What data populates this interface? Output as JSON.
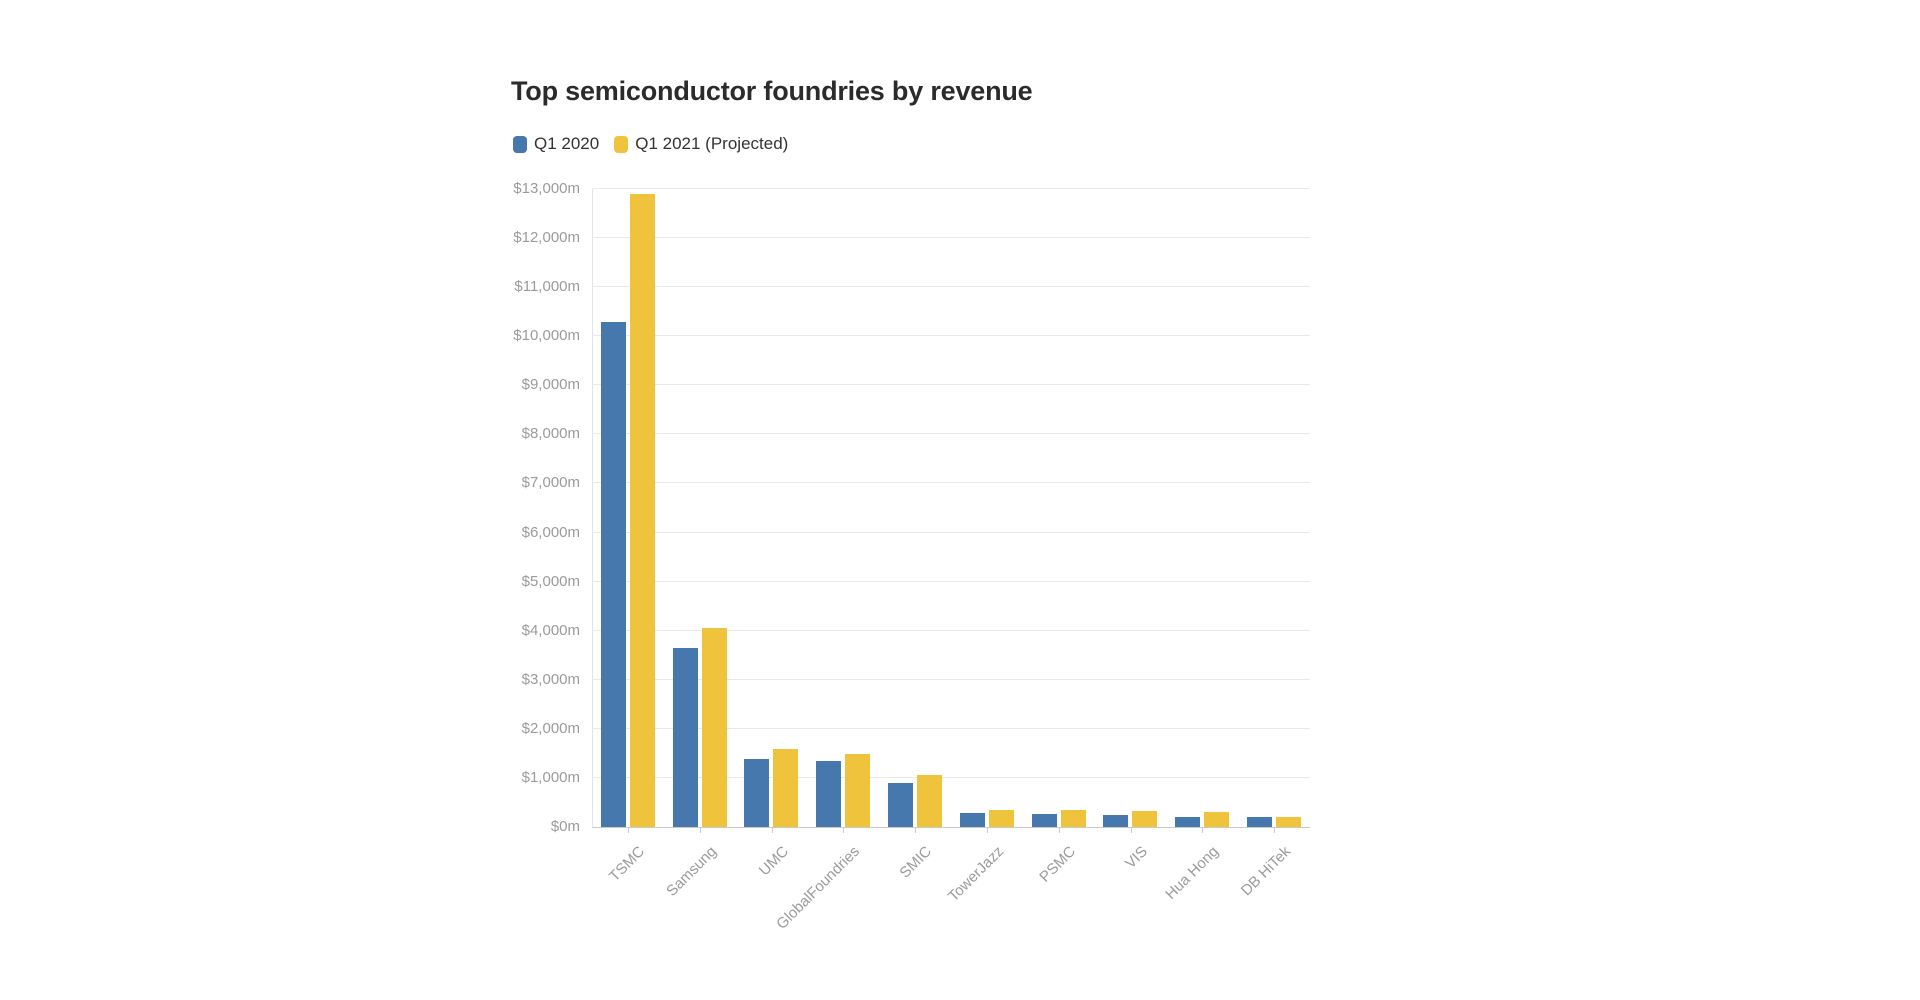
{
  "chart_data": {
    "type": "bar",
    "title": "Top semiconductor foundries by revenue",
    "categories": [
      "TSMC",
      "Samsung",
      "UMC",
      "GlobalFoundries",
      "SMIC",
      "TowerJazz",
      "PSMC",
      "VIS",
      "Hua Hong",
      "DB HiTek"
    ],
    "series": [
      {
        "name": "Q1 2020",
        "color": "#4678ad",
        "values": [
          10300,
          3650,
          1390,
          1350,
          900,
          295,
          270,
          250,
          210,
          195
        ]
      },
      {
        "name": "Q1 2021 (Projected)",
        "color": "#f0c33c",
        "values": [
          12900,
          4050,
          1590,
          1480,
          1065,
          350,
          345,
          335,
          315,
          210
        ]
      }
    ],
    "ylim": [
      0,
      13000
    ],
    "y_tick_step": 1000,
    "y_tick_labels": [
      "$0m",
      "$1,000m",
      "$2,000m",
      "$3,000m",
      "$4,000m",
      "$5,000m",
      "$6,000m",
      "$7,000m",
      "$8,000m",
      "$9,000m",
      "$10,000m",
      "$11,000m",
      "$12,000m",
      "$13,000m"
    ],
    "grid": "horizontal",
    "legend_position": "top-left",
    "x_label_rotation": -45
  },
  "colors": {
    "background": "#ffffff",
    "title_text": "#2b2b2b",
    "legend_text": "#333333",
    "axis_label_text": "#9b9b9b",
    "gridline": "#e9e9e9",
    "baseline": "#c9c9c9",
    "tick": "#cccccc"
  }
}
